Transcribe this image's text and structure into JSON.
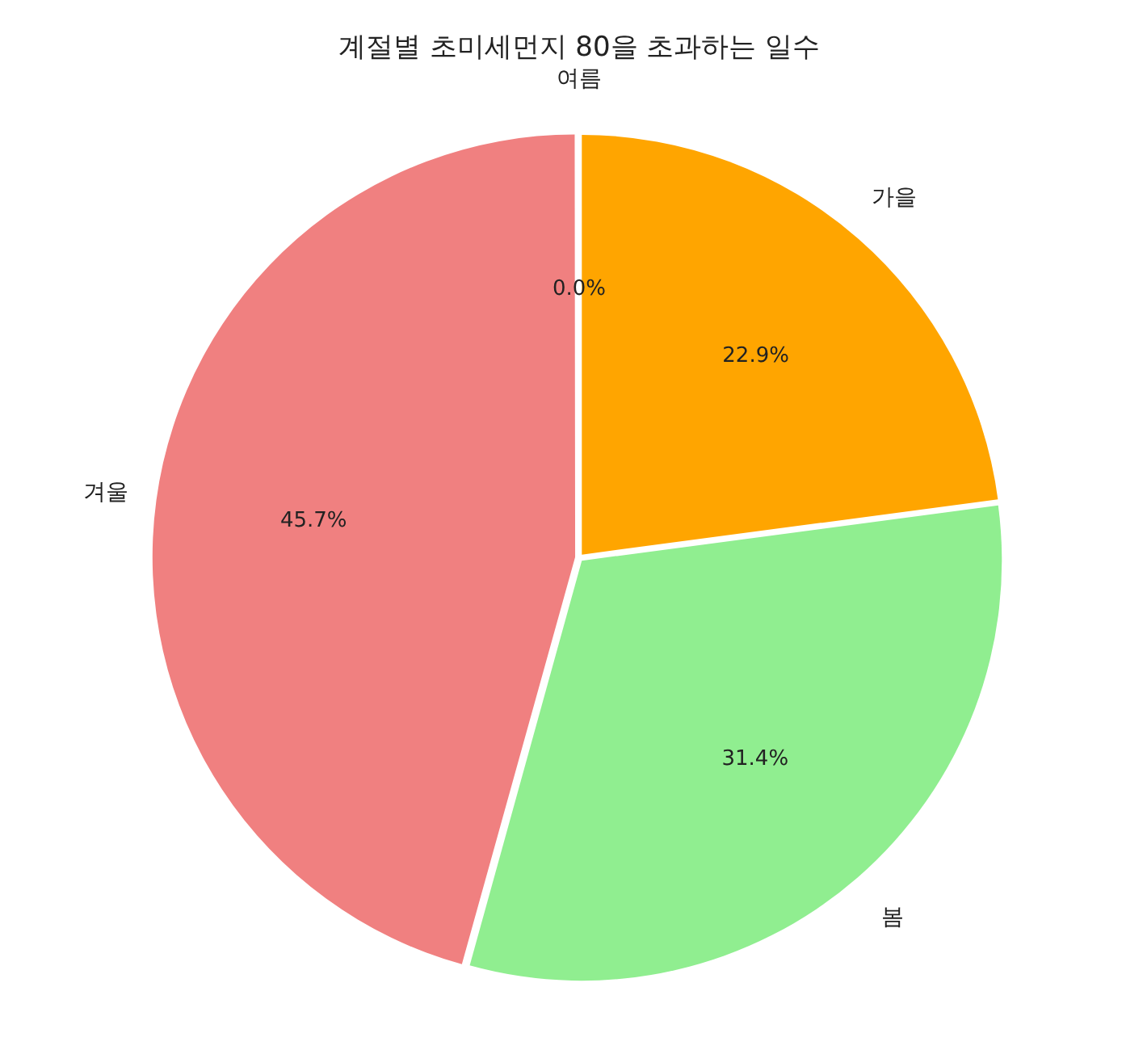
{
  "chart_data": {
    "type": "pie",
    "title": "계절별 초미세먼지 80을 초과하는 일수",
    "categories": [
      "여름",
      "가을",
      "봄",
      "겨울"
    ],
    "values": [
      0.0,
      22.9,
      31.4,
      45.7
    ],
    "value_labels": [
      "0.0%",
      "22.9%",
      "31.4%",
      "45.7%"
    ],
    "colors": [
      "#87cefa",
      "#ffa500",
      "#90ee90",
      "#f08080"
    ],
    "legend": false
  }
}
